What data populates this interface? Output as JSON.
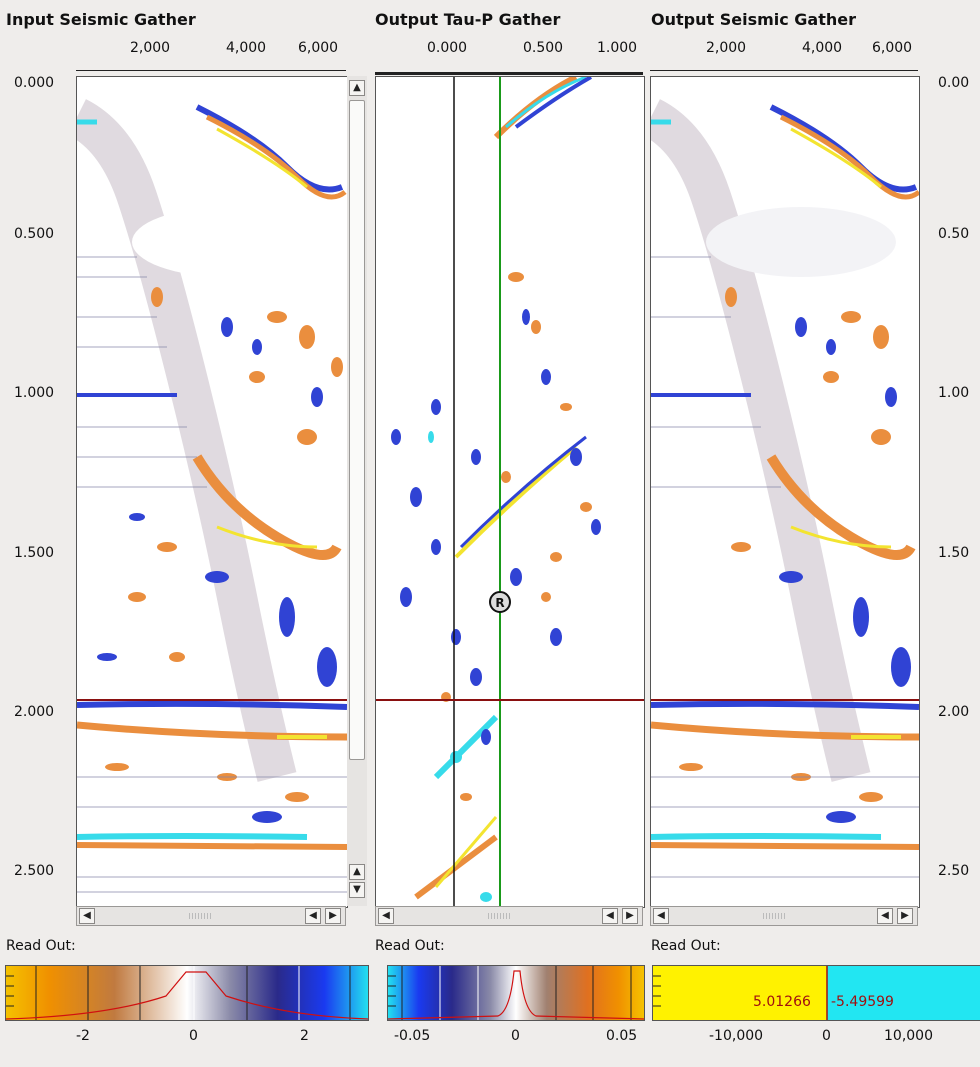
{
  "panels": [
    {
      "title": "Input Seismic Gather",
      "x_ticks": [
        "2,000",
        "4,000",
        "6,000"
      ]
    },
    {
      "title": "Output Tau-P Gather",
      "x_ticks": [
        "0.000",
        "0.500",
        "1.000"
      ]
    },
    {
      "title": "Output Seismic Gather",
      "x_ticks": [
        "2,000",
        "4,000",
        "6,000"
      ]
    }
  ],
  "time_ticks": [
    "0.000",
    "0.500",
    "1.000",
    "1.500",
    "2.000",
    "2.500"
  ],
  "time_ticks_right": [
    "0.00",
    "0.50",
    "1.00",
    "1.50",
    "2.00",
    "2.50"
  ],
  "picker_marker": "R",
  "readout_label": "Read Out:",
  "colorbars": [
    {
      "ticks": [
        "-2",
        "0",
        "2"
      ]
    },
    {
      "ticks": [
        "-0.05",
        "0",
        "0.05"
      ]
    },
    {
      "ticks": [
        "-10,000",
        "0",
        "10,000"
      ],
      "value_left": "5.01266",
      "value_right": "-5.49599"
    }
  ],
  "colors": {
    "orange": "#e8822a",
    "blue": "#1a2fd0",
    "cyan": "#22d8e8",
    "yellow": "#f2e21a",
    "pick_line": "#8a1010",
    "green_line": "#1a9a1a"
  }
}
